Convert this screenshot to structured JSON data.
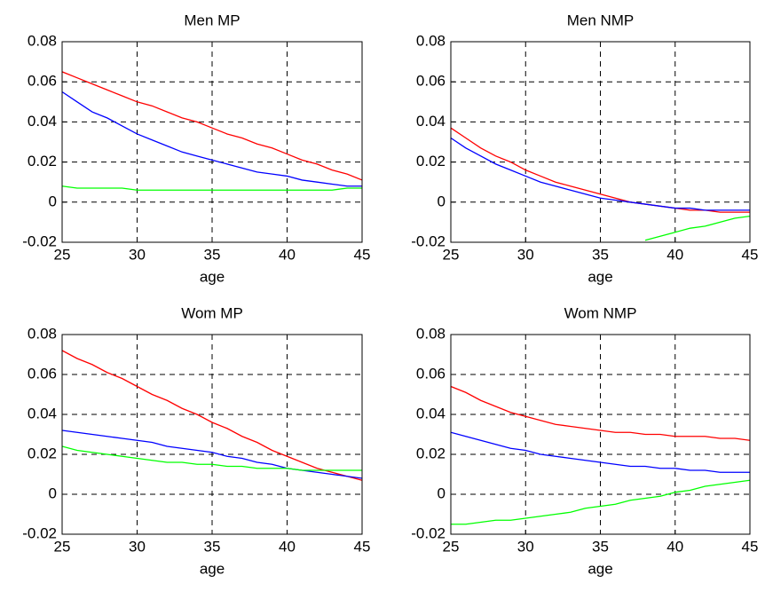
{
  "chart_data": [
    {
      "type": "line",
      "title": "Men MP",
      "xlabel": "age",
      "x": [
        25,
        26,
        27,
        28,
        29,
        30,
        31,
        32,
        33,
        34,
        35,
        36,
        37,
        38,
        39,
        40,
        41,
        42,
        43,
        44,
        45
      ],
      "series": [
        {
          "color": "#ff0000",
          "values": [
            0.065,
            0.062,
            0.059,
            0.056,
            0.053,
            0.05,
            0.048,
            0.045,
            0.042,
            0.04,
            0.037,
            0.034,
            0.032,
            0.029,
            0.027,
            0.024,
            0.021,
            0.019,
            0.016,
            0.014,
            0.011
          ]
        },
        {
          "color": "#0000ff",
          "values": [
            0.055,
            0.05,
            0.045,
            0.042,
            0.038,
            0.034,
            0.031,
            0.028,
            0.025,
            0.023,
            0.021,
            0.019,
            0.017,
            0.015,
            0.014,
            0.013,
            0.011,
            0.01,
            0.009,
            0.008,
            0.008
          ]
        },
        {
          "color": "#00ff00",
          "values": [
            0.008,
            0.007,
            0.007,
            0.007,
            0.007,
            0.006,
            0.006,
            0.006,
            0.006,
            0.006,
            0.006,
            0.006,
            0.006,
            0.006,
            0.006,
            0.006,
            0.006,
            0.006,
            0.006,
            0.007,
            0.007
          ]
        }
      ],
      "xlim": [
        25,
        45
      ],
      "xticks": [
        25,
        30,
        35,
        40,
        45
      ],
      "ylim": [
        -0.02,
        0.08
      ],
      "yticks": [
        -0.02,
        0,
        0.02,
        0.04,
        0.06,
        0.08
      ],
      "grid": true
    },
    {
      "type": "line",
      "title": "Men NMP",
      "xlabel": "age",
      "x": [
        25,
        26,
        27,
        28,
        29,
        30,
        31,
        32,
        33,
        34,
        35,
        36,
        37,
        38,
        39,
        40,
        41,
        42,
        43,
        44,
        45
      ],
      "series": [
        {
          "color": "#ff0000",
          "values": [
            0.037,
            0.032,
            0.027,
            0.023,
            0.02,
            0.016,
            0.013,
            0.01,
            0.008,
            0.006,
            0.004,
            0.002,
            0.0,
            -0.001,
            -0.002,
            -0.003,
            -0.004,
            -0.004,
            -0.005,
            -0.005,
            -0.005
          ]
        },
        {
          "color": "#0000ff",
          "values": [
            0.032,
            0.027,
            0.023,
            0.019,
            0.016,
            0.013,
            0.01,
            0.008,
            0.006,
            0.004,
            0.002,
            0.001,
            0.0,
            -0.001,
            -0.002,
            -0.003,
            -0.003,
            -0.004,
            -0.004,
            -0.004,
            -0.004
          ]
        },
        {
          "color": "#00ff00",
          "values": [
            null,
            null,
            null,
            null,
            null,
            null,
            null,
            null,
            null,
            null,
            null,
            null,
            null,
            -0.019,
            -0.017,
            -0.015,
            -0.013,
            -0.012,
            -0.01,
            -0.008,
            -0.007
          ]
        }
      ],
      "xlim": [
        25,
        45
      ],
      "xticks": [
        25,
        30,
        35,
        40,
        45
      ],
      "ylim": [
        -0.02,
        0.08
      ],
      "yticks": [
        -0.02,
        0,
        0.02,
        0.04,
        0.06,
        0.08
      ],
      "grid": true
    },
    {
      "type": "line",
      "title": "Wom MP",
      "xlabel": "age",
      "x": [
        25,
        26,
        27,
        28,
        29,
        30,
        31,
        32,
        33,
        34,
        35,
        36,
        37,
        38,
        39,
        40,
        41,
        42,
        43,
        44,
        45
      ],
      "series": [
        {
          "color": "#ff0000",
          "values": [
            0.072,
            0.068,
            0.065,
            0.061,
            0.058,
            0.054,
            0.05,
            0.047,
            0.043,
            0.04,
            0.036,
            0.033,
            0.029,
            0.026,
            0.022,
            0.019,
            0.016,
            0.013,
            0.011,
            0.009,
            0.007
          ]
        },
        {
          "color": "#0000ff",
          "values": [
            0.032,
            0.031,
            0.03,
            0.029,
            0.028,
            0.027,
            0.026,
            0.024,
            0.023,
            0.022,
            0.021,
            0.019,
            0.018,
            0.016,
            0.015,
            0.013,
            0.012,
            0.011,
            0.01,
            0.009,
            0.008
          ]
        },
        {
          "color": "#00ff00",
          "values": [
            0.024,
            0.022,
            0.021,
            0.02,
            0.019,
            0.018,
            0.017,
            0.016,
            0.016,
            0.015,
            0.015,
            0.014,
            0.014,
            0.013,
            0.013,
            0.013,
            0.012,
            0.012,
            0.012,
            0.012,
            0.012
          ]
        }
      ],
      "xlim": [
        25,
        45
      ],
      "xticks": [
        25,
        30,
        35,
        40,
        45
      ],
      "ylim": [
        -0.02,
        0.08
      ],
      "yticks": [
        -0.02,
        0,
        0.02,
        0.04,
        0.06,
        0.08
      ],
      "grid": true
    },
    {
      "type": "line",
      "title": "Wom NMP",
      "xlabel": "age",
      "x": [
        25,
        26,
        27,
        28,
        29,
        30,
        31,
        32,
        33,
        34,
        35,
        36,
        37,
        38,
        39,
        40,
        41,
        42,
        43,
        44,
        45
      ],
      "series": [
        {
          "color": "#ff0000",
          "values": [
            0.054,
            0.051,
            0.047,
            0.044,
            0.041,
            0.039,
            0.037,
            0.035,
            0.034,
            0.033,
            0.032,
            0.031,
            0.031,
            0.03,
            0.03,
            0.029,
            0.029,
            0.029,
            0.028,
            0.028,
            0.027
          ]
        },
        {
          "color": "#0000ff",
          "values": [
            0.031,
            0.029,
            0.027,
            0.025,
            0.023,
            0.022,
            0.02,
            0.019,
            0.018,
            0.017,
            0.016,
            0.015,
            0.014,
            0.014,
            0.013,
            0.013,
            0.012,
            0.012,
            0.011,
            0.011,
            0.011
          ]
        },
        {
          "color": "#00ff00",
          "values": [
            -0.015,
            -0.015,
            -0.014,
            -0.013,
            -0.013,
            -0.012,
            -0.011,
            -0.01,
            -0.009,
            -0.007,
            -0.006,
            -0.005,
            -0.003,
            -0.002,
            -0.001,
            0.001,
            0.002,
            0.004,
            0.005,
            0.006,
            0.007
          ]
        }
      ],
      "xlim": [
        25,
        45
      ],
      "xticks": [
        25,
        30,
        35,
        40,
        45
      ],
      "ylim": [
        -0.02,
        0.08
      ],
      "yticks": [
        -0.02,
        0,
        0.02,
        0.04,
        0.06,
        0.08
      ],
      "grid": true
    }
  ]
}
